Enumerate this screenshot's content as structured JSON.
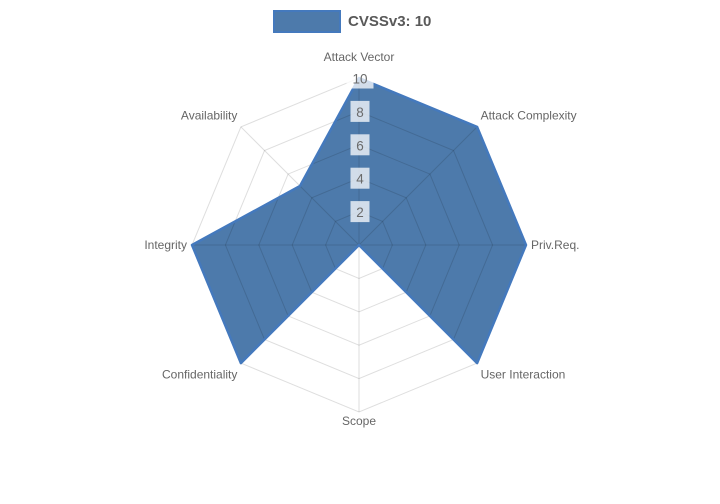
{
  "legend": {
    "label": "CVSSv3: 10"
  },
  "chart_data": {
    "type": "radar",
    "title": "",
    "categories": [
      "Attack Vector",
      "Attack Complexity",
      "Priv.Req.",
      "User Interaction",
      "Scope",
      "Confidentiality",
      "Integrity",
      "Availability"
    ],
    "series": [
      {
        "name": "CVSSv3: 10",
        "values": [
          10,
          10,
          10,
          10,
          0,
          10,
          10,
          5
        ]
      }
    ],
    "rmin": 0,
    "rmax": 10,
    "ticks": [
      2,
      4,
      6,
      8,
      10
    ],
    "grid": true,
    "legend_position": "top",
    "colors": {
      "fill": "#4d7aab",
      "stroke": "#4479bd",
      "grid": "rgba(0,0,0,0.13)",
      "label": "#666666",
      "tick_text": "#6b6b6b",
      "tick_backdrop": "rgba(255,255,255,0.75)"
    }
  }
}
